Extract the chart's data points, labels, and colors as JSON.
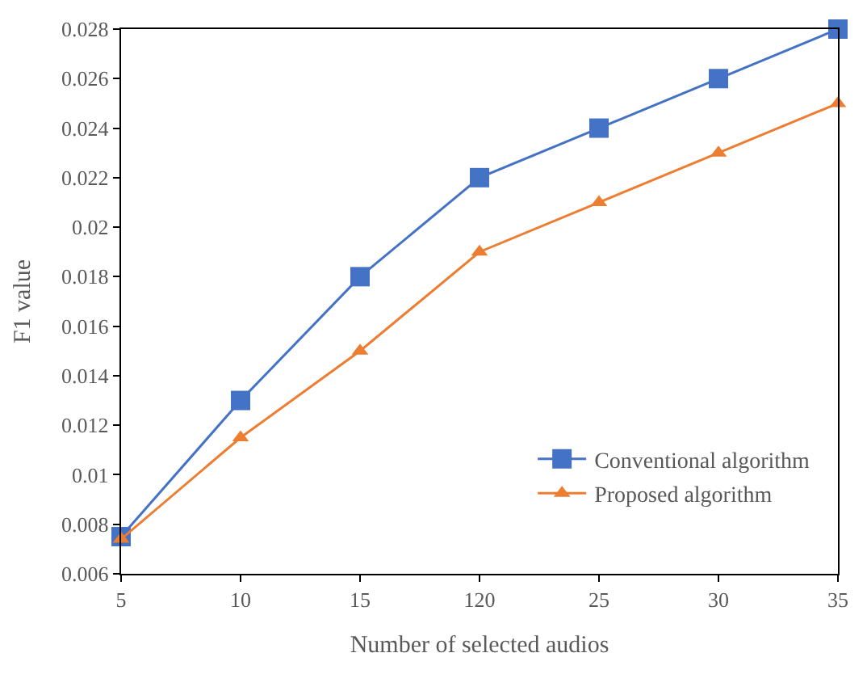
{
  "chart_data": {
    "type": "line",
    "xlabel": "Number of selected audios",
    "ylabel": "F1 value",
    "categories": [
      "5",
      "10",
      "15",
      "120",
      "25",
      "30",
      "35"
    ],
    "series": [
      {
        "name": "Conventional algorithm",
        "color": "#4472c4",
        "marker": "square",
        "values": [
          0.0075,
          0.013,
          0.018,
          0.022,
          0.024,
          0.026,
          0.028
        ]
      },
      {
        "name": "Proposed algorithm",
        "color": "#ed7d31",
        "marker": "triangle",
        "values": [
          0.0074,
          0.0115,
          0.015,
          0.019,
          0.021,
          0.023,
          0.025
        ]
      }
    ],
    "ylim": [
      0.006,
      0.028
    ],
    "yticks": [
      0.006,
      0.008,
      0.01,
      0.012,
      0.014,
      0.016,
      0.018,
      0.02,
      0.022,
      0.024,
      0.026,
      0.028
    ],
    "legend": "bottom right",
    "line_style": "solid"
  }
}
